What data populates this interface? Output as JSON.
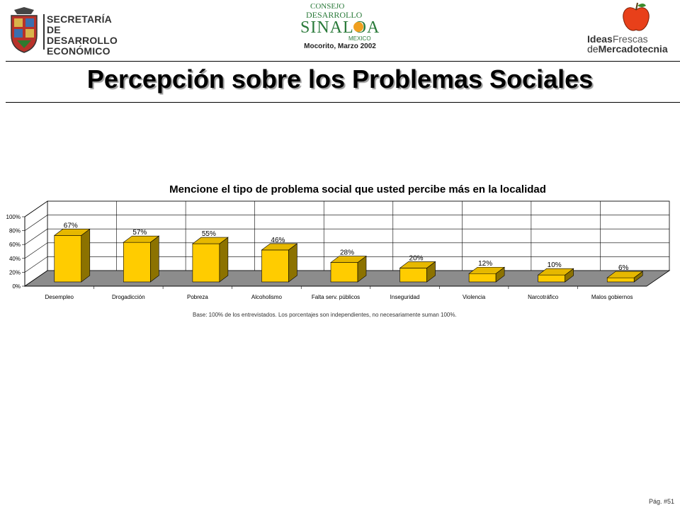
{
  "header": {
    "org_line1": "SECRETARÍA",
    "org_line2": "DE DESARROLLO",
    "org_line3": "ECONÓMICO",
    "center_logo_line1": "CONSEJO",
    "center_logo_line2": "DESARROLLO",
    "center_logo_line3": "SINALOA",
    "center_logo_line4": "MEXICO",
    "place_date": "Mocorito, Marzo 2002",
    "brand_ideas": "Ideas",
    "brand_frescas": "Frescas",
    "brand_de": "de",
    "brand_mercadotecnia": "Mercadotecnia"
  },
  "title": "Percepción sobre los Problemas Sociales",
  "chart_data": {
    "type": "bar",
    "title": "Mencione el tipo de problema social que usted percibe más en la localidad",
    "categories": [
      "Desempleo",
      "Drogadicción",
      "Pobreza",
      "Alcoholismo",
      "Falta serv. públicos",
      "Inseguridad",
      "Violencia",
      "Narcotráfico",
      "Malos gobiernos"
    ],
    "values": [
      67,
      57,
      55,
      46,
      28,
      20,
      12,
      10,
      6
    ],
    "data_labels": [
      "67%",
      "57%",
      "55%",
      "46%",
      "28%",
      "20%",
      "12%",
      "10%",
      "6%"
    ],
    "y_ticks": [
      "0%",
      "20%",
      "40%",
      "60%",
      "80%",
      "100%"
    ],
    "ylim": [
      0,
      100
    ],
    "grid": true,
    "bar_color": "#FFCC00",
    "bar_side_color": "#8C7200",
    "floor_color": "#8C8C8C"
  },
  "footnote": "Base:  100% de los entrevistados. Los porcentajes son independientes, no necesariamente suman 100%.",
  "page_number": "Pág. #51"
}
